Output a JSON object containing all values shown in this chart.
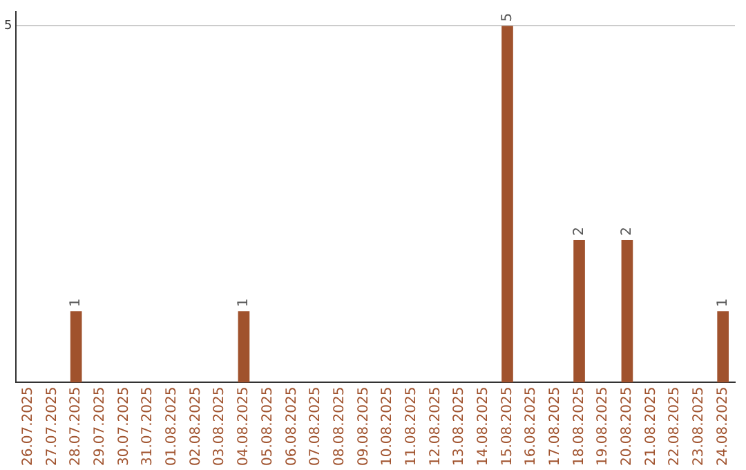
{
  "chart_data": {
    "type": "bar",
    "categories": [
      "26.07.2025",
      "27.07.2025",
      "28.07.2025",
      "29.07.2025",
      "30.07.2025",
      "31.07.2025",
      "01.08.2025",
      "02.08.2025",
      "03.08.2025",
      "04.08.2025",
      "05.08.2025",
      "06.08.2025",
      "07.08.2025",
      "08.08.2025",
      "09.08.2025",
      "10.08.2025",
      "11.08.2025",
      "12.08.2025",
      "13.08.2025",
      "14.08.2025",
      "15.08.2025",
      "16.08.2025",
      "17.08.2025",
      "18.08.2025",
      "19.08.2025",
      "20.08.2025",
      "21.08.2025",
      "22.08.2025",
      "23.08.2025",
      "24.08.2025"
    ],
    "values": [
      0,
      0,
      1,
      0,
      0,
      0,
      0,
      0,
      0,
      1,
      0,
      0,
      0,
      0,
      0,
      0,
      0,
      0,
      0,
      0,
      5,
      0,
      0,
      2,
      0,
      2,
      0,
      0,
      0,
      1
    ],
    "value_labels": [
      null,
      null,
      "1",
      null,
      null,
      null,
      null,
      null,
      null,
      "1",
      null,
      null,
      null,
      null,
      null,
      null,
      null,
      null,
      null,
      null,
      "5",
      null,
      null,
      "2",
      null,
      "2",
      null,
      null,
      null,
      "1"
    ],
    "color": "#a0522d",
    "ylim": [
      0,
      5.2
    ],
    "yticks": [
      5
    ],
    "grid": "y"
  }
}
